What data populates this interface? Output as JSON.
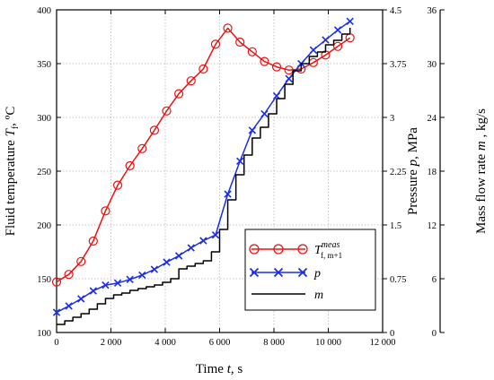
{
  "chart_data": {
    "type": "line",
    "x_axis": {
      "label_prefix": "Time ",
      "label_var": "t",
      "label_suffix": ", s",
      "range": [
        0,
        12000
      ],
      "ticks": [
        0,
        2000,
        4000,
        6000,
        8000,
        10000,
        12000
      ],
      "tick_labels": [
        "0",
        "2 000",
        "4 000",
        "6 000",
        "8 000",
        "10 000",
        "12 000"
      ]
    },
    "y_left": {
      "label_prefix": "Fluid temperature ",
      "label_var": "T",
      "label_sub": "f",
      "label_suffix": ", ºC",
      "range": [
        100,
        400
      ],
      "ticks": [
        100,
        150,
        200,
        250,
        300,
        350,
        400
      ],
      "tick_labels": [
        "100",
        "150",
        "200",
        "250",
        "300",
        "350",
        "400"
      ]
    },
    "y_right1": {
      "label_prefix": "Pressure ",
      "label_var": "p",
      "label_suffix": ", MPa",
      "range": [
        0,
        4.5
      ],
      "ticks": [
        0,
        0.75,
        1.5,
        2.25,
        3,
        3.75,
        4.5
      ],
      "tick_labels": [
        "0",
        "0.75",
        "1.5",
        "2.25",
        "3",
        "3.75",
        "4.5"
      ]
    },
    "y_right2": {
      "label_prefix": "Mass flow rate ",
      "label_var": "m",
      "label_suffix": " , kg/s",
      "range": [
        0,
        36
      ],
      "ticks": [
        0,
        6,
        12,
        18,
        24,
        30,
        36
      ],
      "tick_labels": [
        "0",
        "6",
        "12",
        "18",
        "24",
        "30",
        "36"
      ]
    },
    "series": [
      {
        "name": "T",
        "name_sup": "meas",
        "name_sub": "f, m+1",
        "axis": "y_left",
        "color": "#ee1111",
        "marker": "circle",
        "x": [
          0,
          450,
          900,
          1350,
          1800,
          2250,
          2700,
          3150,
          3600,
          4050,
          4500,
          4950,
          5400,
          5850,
          6300,
          6750,
          7200,
          7650,
          8100,
          8550,
          9000,
          9450,
          9900,
          10350,
          10800
        ],
        "y": [
          147,
          154,
          166,
          185,
          213,
          237,
          255,
          271,
          288,
          306,
          322,
          334,
          345,
          368,
          383,
          370,
          361,
          352,
          347,
          344,
          345,
          351,
          358,
          366,
          374
        ]
      },
      {
        "name": "p",
        "axis": "y_right1",
        "color": "#1a2ee8",
        "marker": "x",
        "x": [
          0,
          450,
          900,
          1350,
          1800,
          2250,
          2700,
          3150,
          3600,
          4050,
          4500,
          4950,
          5400,
          5850,
          6300,
          6750,
          7200,
          7650,
          8100,
          8550,
          9000,
          9450,
          9900,
          10350,
          10800
        ],
        "y": [
          0.28,
          0.37,
          0.47,
          0.58,
          0.66,
          0.69,
          0.74,
          0.8,
          0.88,
          0.98,
          1.07,
          1.18,
          1.28,
          1.36,
          1.93,
          2.39,
          2.82,
          3.05,
          3.3,
          3.54,
          3.75,
          3.94,
          4.08,
          4.22,
          4.34
        ]
      },
      {
        "name": "m",
        "axis": "y_right2",
        "color": "#000000",
        "marker": "none",
        "x": [
          0,
          300,
          600,
          900,
          1200,
          1500,
          1800,
          2100,
          2400,
          2700,
          3000,
          3300,
          3600,
          3900,
          4200,
          4500,
          4800,
          5100,
          5400,
          5700,
          6000,
          6300,
          6600,
          6900,
          7200,
          7500,
          7800,
          8100,
          8400,
          8700,
          9000,
          9300,
          9600,
          9900,
          10200,
          10500,
          10800
        ],
        "y": [
          0.9,
          1.3,
          1.7,
          2.1,
          2.6,
          3.2,
          3.8,
          4.2,
          4.4,
          4.7,
          4.9,
          5.1,
          5.3,
          5.6,
          6.0,
          7.1,
          7.4,
          7.7,
          8.0,
          9.0,
          11.5,
          14.8,
          17.6,
          19.8,
          21.7,
          22.9,
          24.4,
          26.1,
          27.7,
          29.2,
          30.0,
          30.8,
          31.3,
          32.1,
          32.6,
          33.3,
          34.0
        ]
      }
    ],
    "legend": {
      "position": "bottom-right",
      "box": true
    }
  }
}
